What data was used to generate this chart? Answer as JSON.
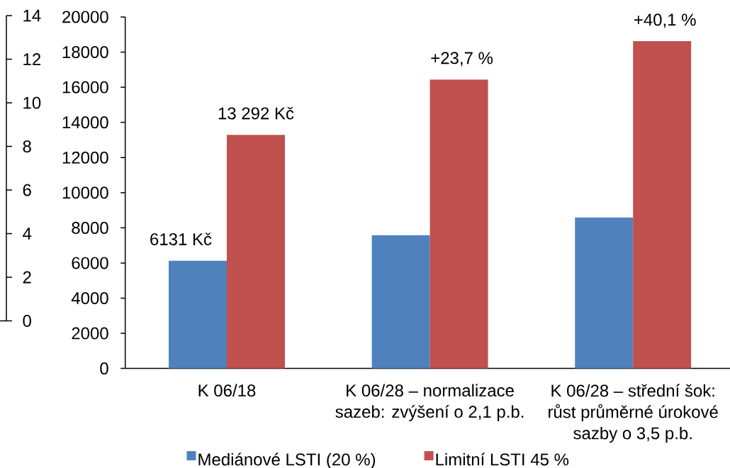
{
  "chart_data": {
    "type": "bar",
    "categories": [
      "K 06/18",
      "K 06/28 – normalizace sazeb: zvýšení o 2,1 p.b.",
      "K 06/28 – střední šok: růst průměrné úrokové sazby o 3,5 p.b."
    ],
    "series": [
      {
        "name": "Mediánové LSTI (20 %)",
        "color": "#4f81bd",
        "values": [
          6131,
          7580,
          8590
        ],
        "value_labels": [
          "6131 Kč",
          null,
          null
        ]
      },
      {
        "name": "Limitní LSTI 45 %",
        "color": "#c0504d",
        "values": [
          13292,
          16440,
          18620
        ],
        "value_labels": [
          "13 292 Kč",
          null,
          null
        ]
      }
    ],
    "annotations": [
      {
        "text": "+23,7 %",
        "x": "K 06/28 – normalizace sazeb: zvýšení o 2,1 p.b.",
        "y": 16440
      },
      {
        "text": "+40,1 %",
        "x": "K 06/28 – střední šok: růst průměrné úrokové sazby o 3,5 p.b.",
        "y": 18620
      }
    ],
    "ylim": [
      0,
      20000
    ],
    "yticks": [
      0,
      2000,
      4000,
      6000,
      8000,
      10000,
      12000,
      14000,
      16000,
      18000,
      20000
    ],
    "y2lim": [
      0,
      14
    ],
    "y2ticks": [
      0,
      2,
      4,
      6,
      8,
      10,
      12,
      14
    ],
    "legend": "bottom"
  }
}
